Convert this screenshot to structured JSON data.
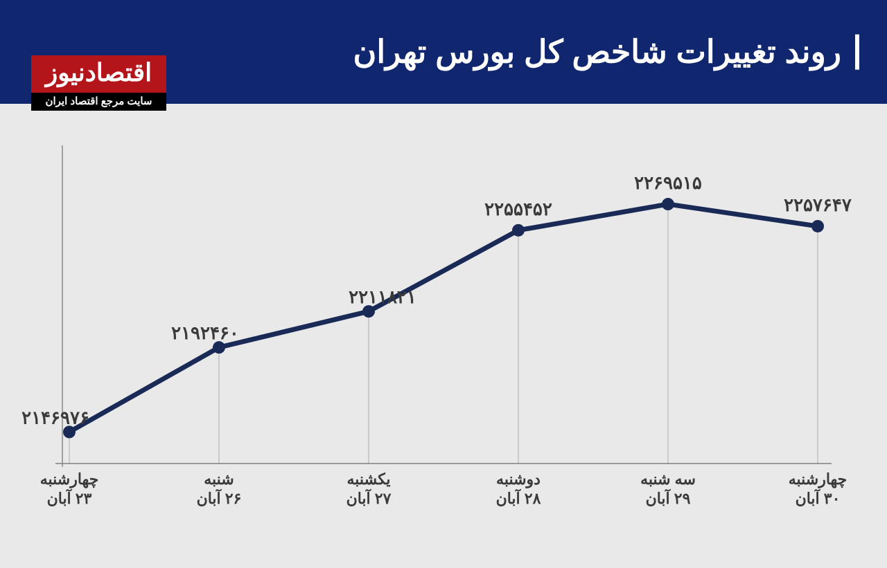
{
  "header": {
    "title": "روند تغییرات شاخص کل بورس تهران",
    "title_color": "#ffffff",
    "title_fontsize": 46,
    "bg_color": "#10266f"
  },
  "logo": {
    "top": "اقتصادنیوز",
    "bottom": "سایت مرجع اقتصاد ایران",
    "top_bg": "#b4151b",
    "bottom_bg": "#000000",
    "text_color": "#ffffff"
  },
  "chart": {
    "type": "line",
    "background_color": "#e9e9e9",
    "line_color": "#1a2a57",
    "line_width": 7,
    "marker_radius": 9,
    "axis_color": "#808080",
    "drop_color": "#b7b7b7",
    "label_color": "#3a3a3a",
    "value_fontsize": 26,
    "axis_fontsize": 22,
    "y_min": 2130000,
    "y_max": 2290000,
    "points": [
      {
        "day": "چهارشنبه",
        "date": "۲۳ آبان",
        "value": 2146976,
        "value_label": "۲۱۴۶۹۷۶",
        "value_label_pos": "left"
      },
      {
        "day": "شنبه",
        "date": "۲۶ آبان",
        "value": 2192460,
        "value_label": "۲۱۹۲۴۶۰",
        "value_label_pos": "left"
      },
      {
        "day": "یکشنبه",
        "date": "۲۷ آبان",
        "value": 2211821,
        "value_label": "۲۲۱۱۸۲۱",
        "value_label_pos": "right"
      },
      {
        "day": "دوشنبه",
        "date": "۲۸ آبان",
        "value": 2255452,
        "value_label": "۲۲۵۵۴۵۲",
        "value_label_pos": "top"
      },
      {
        "day": "سه شنبه",
        "date": "۲۹ آبان",
        "value": 2269515,
        "value_label": "۲۲۶۹۵۱۵",
        "value_label_pos": "top"
      },
      {
        "day": "چهارشنبه",
        "date": "۳۰ آبان",
        "value": 2257647,
        "value_label": "۲۲۵۷۶۴۷",
        "value_label_pos": "top"
      }
    ]
  }
}
